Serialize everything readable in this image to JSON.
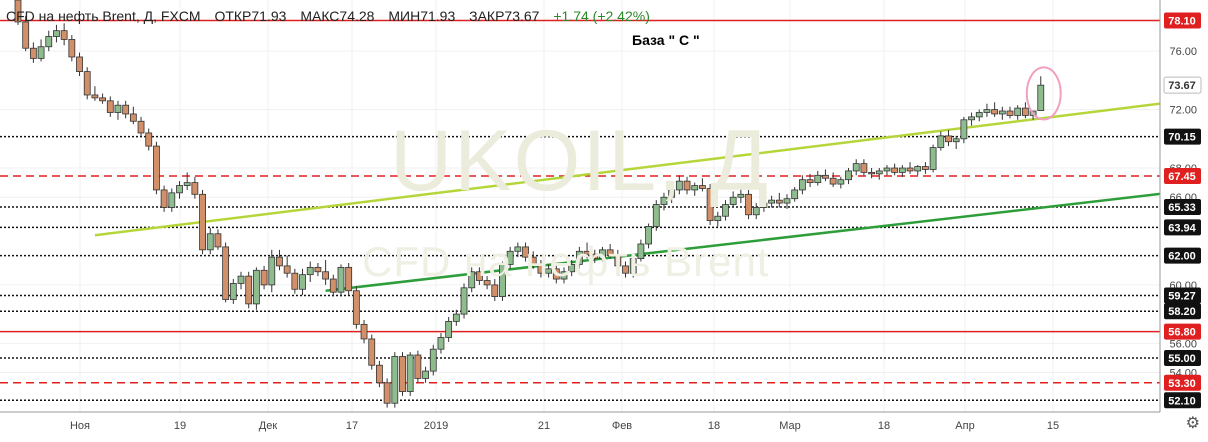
{
  "header": {
    "instrument": "CFD на нефть Brent, Д, FXCM",
    "open": "ОТКР71.93",
    "high": "МАКС74.28",
    "low": "МИН71.93",
    "close": "ЗАКР73.67",
    "change": "+1.74 (+2.42%)"
  },
  "annotation": "База  \" С \"",
  "watermark": {
    "line1": "UKOIL, Д",
    "line2": "CFD на нефть Brent"
  },
  "colors": {
    "up": "#8fbc8f",
    "down": "#d2906a",
    "red_level": "#e02020",
    "green_trend": "#2e9e3a",
    "lime_trend": "#b5d63a",
    "current_price": "#ffffff"
  },
  "chart_data": {
    "type": "candlestick",
    "x_tick_labels": [
      "Ноя",
      "19",
      "Дек",
      "17",
      "2019",
      "21",
      "Фев",
      "18",
      "Мар",
      "18",
      "Апр",
      "15"
    ],
    "y_tick_labels": [
      "76.00",
      "72.00",
      "68.00",
      "66.00",
      "60.00",
      "56.00",
      "54.00"
    ],
    "ylim": [
      51.3,
      79.5
    ],
    "price_levels": [
      {
        "value": 78.1,
        "label": "78.10",
        "style": "solid-red"
      },
      {
        "value": 73.67,
        "label": "73.67",
        "style": "current"
      },
      {
        "value": 70.15,
        "label": "70.15",
        "style": "dotted-black"
      },
      {
        "value": 67.45,
        "label": "67.45",
        "style": "dashed-red"
      },
      {
        "value": 65.33,
        "label": "65.33",
        "style": "dotted-black"
      },
      {
        "value": 63.94,
        "label": "63.94",
        "style": "dotted-black"
      },
      {
        "value": 62.0,
        "label": "62.00",
        "style": "dotted-black"
      },
      {
        "value": 59.27,
        "label": "59.27",
        "style": "dotted-black"
      },
      {
        "value": 58.2,
        "label": "58.20",
        "style": "dotted-black"
      },
      {
        "value": 56.8,
        "label": "56.80",
        "style": "solid-red"
      },
      {
        "value": 55.0,
        "label": "55.00",
        "style": "dotted-black"
      },
      {
        "value": 53.3,
        "label": "53.30",
        "style": "dashed-red"
      },
      {
        "value": 52.1,
        "label": "52.10",
        "style": "dotted-black"
      }
    ],
    "candles": [
      [
        79.5,
        80.3,
        77.8,
        78.0
      ],
      [
        78.0,
        78.4,
        76.0,
        76.2
      ],
      [
        76.2,
        76.6,
        75.2,
        75.5
      ],
      [
        75.5,
        76.8,
        75.3,
        76.3
      ],
      [
        76.3,
        77.4,
        76.0,
        77.0
      ],
      [
        77.0,
        77.8,
        76.6,
        77.4
      ],
      [
        77.4,
        77.9,
        76.4,
        76.8
      ],
      [
        76.8,
        77.1,
        75.3,
        75.6
      ],
      [
        75.6,
        75.9,
        74.3,
        74.6
      ],
      [
        74.6,
        74.9,
        72.7,
        73.0
      ],
      [
        73.0,
        73.6,
        72.6,
        72.8
      ],
      [
        72.8,
        73.1,
        72.4,
        72.6
      ],
      [
        72.6,
        72.9,
        71.5,
        71.8
      ],
      [
        71.8,
        72.6,
        71.3,
        72.3
      ],
      [
        72.3,
        72.6,
        71.4,
        71.7
      ],
      [
        71.7,
        72.2,
        71.0,
        71.2
      ],
      [
        71.2,
        71.5,
        70.1,
        70.4
      ],
      [
        70.4,
        70.7,
        69.2,
        69.5
      ],
      [
        69.5,
        69.8,
        66.2,
        66.5
      ],
      [
        66.5,
        66.8,
        65.0,
        65.3
      ],
      [
        65.3,
        66.6,
        65.0,
        66.3
      ],
      [
        66.3,
        67.1,
        65.9,
        66.8
      ],
      [
        66.8,
        67.7,
        66.5,
        67.0
      ],
      [
        67.0,
        67.4,
        65.9,
        66.2
      ],
      [
        66.2,
        66.5,
        62.1,
        62.4
      ],
      [
        62.4,
        63.9,
        62.1,
        63.5
      ],
      [
        63.5,
        63.8,
        62.4,
        62.6
      ],
      [
        62.6,
        62.9,
        58.8,
        59.0
      ],
      [
        59.0,
        60.4,
        58.7,
        60.1
      ],
      [
        60.1,
        60.9,
        59.7,
        60.6
      ],
      [
        60.6,
        60.9,
        58.4,
        58.7
      ],
      [
        58.7,
        61.2,
        58.3,
        61.0
      ],
      [
        61.0,
        61.3,
        59.7,
        60.0
      ],
      [
        60.0,
        62.4,
        59.5,
        61.9
      ],
      [
        61.9,
        62.4,
        61.0,
        61.3
      ],
      [
        61.3,
        62.0,
        60.5,
        60.8
      ],
      [
        60.8,
        61.1,
        59.4,
        59.7
      ],
      [
        59.7,
        61.1,
        59.3,
        60.7
      ],
      [
        60.7,
        61.6,
        60.2,
        61.2
      ],
      [
        61.2,
        61.5,
        60.6,
        60.9
      ],
      [
        60.9,
        61.7,
        60.0,
        60.4
      ],
      [
        60.4,
        60.7,
        59.2,
        59.5
      ],
      [
        59.5,
        61.4,
        59.2,
        61.2
      ],
      [
        61.2,
        61.5,
        59.3,
        59.6
      ],
      [
        59.6,
        59.9,
        57.0,
        57.3
      ],
      [
        57.3,
        57.6,
        56.0,
        56.3
      ],
      [
        56.3,
        56.6,
        54.2,
        54.5
      ],
      [
        54.5,
        54.8,
        53.0,
        53.3
      ],
      [
        53.3,
        53.6,
        51.6,
        51.9
      ],
      [
        51.9,
        55.4,
        51.6,
        55.1
      ],
      [
        55.1,
        55.4,
        52.4,
        52.7
      ],
      [
        52.7,
        55.4,
        52.4,
        55.2
      ],
      [
        55.2,
        55.5,
        53.3,
        53.6
      ],
      [
        53.6,
        54.4,
        53.3,
        54.1
      ],
      [
        54.1,
        55.9,
        53.8,
        55.6
      ],
      [
        55.6,
        56.7,
        55.3,
        56.4
      ],
      [
        56.4,
        57.8,
        56.1,
        57.5
      ],
      [
        57.5,
        58.3,
        57.2,
        58.0
      ],
      [
        58.0,
        60.1,
        57.7,
        59.8
      ],
      [
        59.8,
        61.2,
        59.5,
        60.9
      ],
      [
        60.9,
        61.2,
        60.0,
        60.3
      ],
      [
        60.3,
        60.6,
        59.7,
        60.0
      ],
      [
        60.0,
        60.4,
        58.9,
        59.2
      ],
      [
        59.2,
        61.6,
        58.9,
        61.4
      ],
      [
        61.4,
        62.6,
        61.1,
        62.3
      ],
      [
        62.3,
        62.9,
        61.9,
        62.6
      ],
      [
        62.6,
        62.9,
        61.6,
        61.9
      ],
      [
        61.9,
        62.3,
        61.1,
        61.4
      ],
      [
        61.4,
        61.7,
        60.5,
        60.8
      ],
      [
        60.8,
        61.4,
        60.5,
        61.1
      ],
      [
        61.1,
        61.4,
        60.1,
        60.4
      ],
      [
        60.4,
        61.2,
        60.1,
        60.9
      ],
      [
        60.9,
        61.7,
        60.6,
        61.4
      ],
      [
        61.4,
        62.6,
        61.1,
        62.3
      ],
      [
        62.3,
        62.9,
        61.8,
        62.1
      ],
      [
        62.1,
        62.4,
        61.5,
        61.8
      ],
      [
        61.8,
        62.6,
        61.6,
        62.4
      ],
      [
        62.4,
        62.8,
        61.8,
        62.0
      ],
      [
        62.0,
        62.4,
        61.1,
        61.3
      ],
      [
        61.3,
        61.6,
        60.5,
        60.8
      ],
      [
        60.8,
        62.0,
        60.5,
        61.8
      ],
      [
        61.8,
        63.1,
        61.6,
        62.8
      ],
      [
        62.8,
        64.2,
        62.5,
        64.0
      ],
      [
        64.0,
        65.8,
        63.7,
        65.5
      ],
      [
        65.5,
        66.3,
        65.1,
        66.0
      ],
      [
        66.0,
        66.8,
        65.6,
        66.5
      ],
      [
        66.5,
        67.5,
        66.2,
        67.1
      ],
      [
        67.1,
        67.4,
        66.2,
        66.5
      ],
      [
        66.5,
        67.0,
        66.1,
        66.8
      ],
      [
        66.8,
        67.3,
        66.4,
        66.6
      ],
      [
        66.6,
        66.9,
        64.1,
        64.4
      ],
      [
        64.4,
        65.0,
        64.0,
        64.7
      ],
      [
        64.7,
        65.8,
        64.4,
        65.5
      ],
      [
        65.5,
        66.4,
        65.3,
        66.0
      ],
      [
        66.0,
        66.6,
        65.6,
        66.2
      ],
      [
        66.2,
        66.5,
        64.5,
        64.8
      ],
      [
        64.8,
        65.6,
        64.5,
        65.3
      ],
      [
        65.3,
        65.9,
        65.0,
        65.6
      ],
      [
        65.6,
        66.1,
        65.3,
        65.8
      ],
      [
        65.8,
        66.3,
        65.3,
        65.6
      ],
      [
        65.6,
        66.2,
        65.2,
        65.9
      ],
      [
        65.9,
        66.7,
        65.7,
        66.5
      ],
      [
        66.5,
        67.5,
        66.2,
        67.2
      ],
      [
        67.2,
        67.6,
        66.7,
        67.0
      ],
      [
        67.0,
        67.8,
        66.8,
        67.5
      ],
      [
        67.5,
        67.9,
        67.1,
        67.3
      ],
      [
        67.3,
        67.7,
        66.7,
        66.9
      ],
      [
        66.9,
        67.4,
        66.6,
        67.2
      ],
      [
        67.2,
        68.0,
        66.9,
        67.8
      ],
      [
        67.8,
        68.6,
        67.5,
        68.3
      ],
      [
        68.3,
        68.6,
        67.5,
        67.7
      ],
      [
        67.7,
        68.0,
        67.3,
        67.6
      ],
      [
        67.6,
        68.0,
        67.2,
        67.8
      ],
      [
        67.8,
        68.2,
        67.5,
        68.0
      ],
      [
        68.0,
        68.3,
        67.5,
        67.7
      ],
      [
        67.7,
        68.2,
        67.4,
        68.0
      ],
      [
        68.0,
        68.4,
        67.6,
        67.8
      ],
      [
        67.8,
        68.2,
        67.5,
        68.1
      ],
      [
        68.1,
        68.4,
        67.6,
        67.9
      ],
      [
        67.9,
        69.6,
        67.7,
        69.4
      ],
      [
        69.4,
        70.5,
        69.2,
        70.2
      ],
      [
        70.2,
        70.6,
        69.5,
        69.8
      ],
      [
        69.8,
        70.2,
        69.3,
        70.0
      ],
      [
        70.0,
        71.5,
        69.7,
        71.3
      ],
      [
        71.3,
        71.8,
        70.9,
        71.5
      ],
      [
        71.5,
        72.0,
        71.2,
        71.8
      ],
      [
        71.8,
        72.4,
        71.5,
        72.0
      ],
      [
        72.0,
        72.5,
        71.5,
        71.7
      ],
      [
        71.7,
        72.2,
        71.3,
        71.9
      ],
      [
        71.9,
        72.2,
        71.4,
        71.6
      ],
      [
        71.6,
        72.3,
        71.3,
        72.1
      ],
      [
        72.1,
        72.5,
        71.4,
        71.6
      ],
      [
        71.6,
        71.9,
        71.3,
        71.9
      ],
      [
        71.93,
        74.28,
        71.93,
        73.67
      ]
    ],
    "trend_lines": [
      {
        "name": "",
        "color": "lime",
        "x": [
          10,
          190
        ],
        "y": [
          63.4,
          75.1
        ]
      },
      {
        "name": "",
        "color": "green",
        "x": [
          40,
          220
        ],
        "y": [
          59.6,
          70.6
        ]
      }
    ]
  }
}
